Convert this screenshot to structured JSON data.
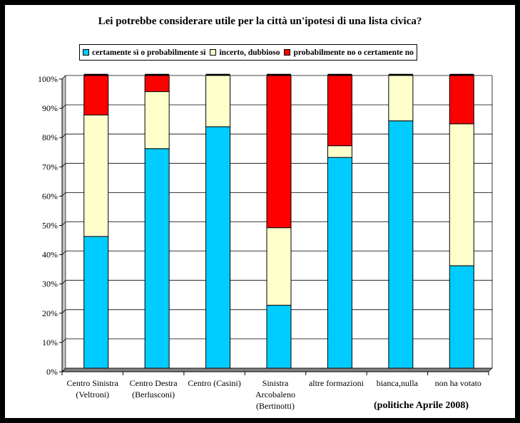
{
  "chart_data": {
    "type": "bar",
    "stacked": true,
    "percent": true,
    "title": "Lei potrebbe considerare utile per la città un'ipotesi di una lista civica?",
    "categories": [
      [
        "Centro Sinistra",
        "(Veltroni)"
      ],
      [
        "Centro Destra",
        "(Berlusconi)"
      ],
      [
        "Centro (Casini)"
      ],
      [
        "Sinistra",
        "Arcobaleno",
        "(Bertinotti)"
      ],
      [
        "altre formazioni"
      ],
      [
        "bianca,nulla"
      ],
      [
        "non ha votato"
      ]
    ],
    "series": [
      {
        "name": "certamente sì o probabilmente sì",
        "color": "#00CCFF",
        "values": [
          45,
          75,
          82.5,
          21.5,
          72,
          84.5,
          35
        ]
      },
      {
        "name": "incerto, dubbioso",
        "color": "#FFFFCC",
        "values": [
          41.5,
          19.5,
          17.5,
          26.5,
          4,
          15.5,
          48.5
        ]
      },
      {
        "name": "probabilmente no o certamente no",
        "color": "#FF0000",
        "values": [
          13.5,
          5.5,
          0,
          52,
          24,
          0,
          16.5
        ]
      }
    ],
    "yticks": [
      "0%",
      "10%",
      "20%",
      "30%",
      "40%",
      "50%",
      "60%",
      "70%",
      "80%",
      "90%",
      "100%"
    ],
    "ylim": [
      0,
      100
    ],
    "grid": true,
    "legend_position": "top",
    "annotation": "(politiche Aprile 2008)"
  }
}
